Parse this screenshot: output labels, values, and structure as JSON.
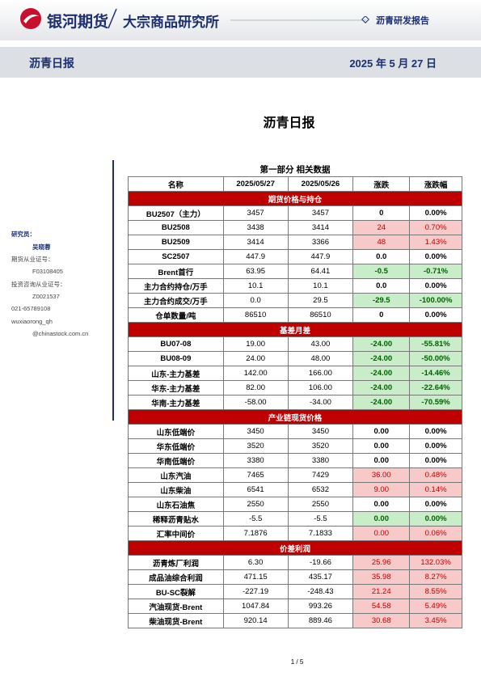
{
  "header": {
    "logo_text": "银河期货",
    "institute": "大宗商品研究所",
    "report_type": "沥青研发报告"
  },
  "banner": {
    "title": "沥青日报",
    "date": "2025 年 5 月 27 日"
  },
  "doc_title": "沥青日报",
  "sidebar": {
    "lines": [
      "研究员：",
      "吴晓蓉",
      "期货从业证号：",
      "F03108405",
      "投资咨询从业证号：",
      "Z0021537",
      "021-65789108",
      "wuxiaorong_qh",
      "@chinastock.com.cn"
    ]
  },
  "table": {
    "title": "第一部分 相关数据",
    "header": [
      "名称",
      "2025/05/27",
      "2025/05/26",
      "涨跌",
      "涨跌幅"
    ],
    "colors": {
      "section": "#c00000",
      "up": "#f8c9c9",
      "down": "#c9ecc9"
    },
    "sections": [
      {
        "title": "期货价格与持仓",
        "rows": [
          {
            "cells": [
              "BU2507（主力）",
              "3457",
              "3457",
              "0",
              "0.00%"
            ]
          },
          {
            "cells": [
              "BU2508",
              "3438",
              "3414",
              "24",
              "0.70%"
            ],
            "fill": "up"
          },
          {
            "cells": [
              "BU2509",
              "3414",
              "3366",
              "48",
              "1.43%"
            ],
            "fill": "up"
          },
          {
            "cells": [
              "SC2507",
              "447.9",
              "447.9",
              "0.0",
              "0.00%"
            ]
          },
          {
            "cells": [
              "Brent首行",
              "63.95",
              "64.41",
              "-0.5",
              "-0.71%"
            ],
            "fill": "down"
          },
          {
            "cells": [
              "主力合约持仓/万手",
              "10.1",
              "10.1",
              "0.0",
              "0.00%"
            ]
          },
          {
            "cells": [
              "主力合约成交/万手",
              "0.0",
              "29.5",
              "-29.5",
              "-100.00%"
            ],
            "fill": "down"
          },
          {
            "cells": [
              "仓单数量/吨",
              "86510",
              "86510",
              "0",
              "0.00%"
            ]
          }
        ]
      },
      {
        "title": "基差月差",
        "rows": [
          {
            "cells": [
              "BU07-08",
              "19.00",
              "43.00",
              "-24.00",
              "-55.81%"
            ],
            "fill": "down"
          },
          {
            "cells": [
              "BU08-09",
              "24.00",
              "48.00",
              "-24.00",
              "-50.00%"
            ],
            "fill": "down"
          },
          {
            "cells": [
              "山东-主力基差",
              "142.00",
              "166.00",
              "-24.00",
              "-14.46%"
            ],
            "fill": "down"
          },
          {
            "cells": [
              "华东-主力基差",
              "82.00",
              "106.00",
              "-24.00",
              "-22.64%"
            ],
            "fill": "down"
          },
          {
            "cells": [
              "华南-主力基差",
              "-58.00",
              "-34.00",
              "-24.00",
              "-70.59%"
            ],
            "fill": "down"
          }
        ]
      },
      {
        "title": "产业链现货价格",
        "rows": [
          {
            "cells": [
              "山东低端价",
              "3450",
              "3450",
              "0.00",
              "0.00%"
            ]
          },
          {
            "cells": [
              "华东低端价",
              "3520",
              "3520",
              "0.00",
              "0.00%"
            ]
          },
          {
            "cells": [
              "华南低端价",
              "3380",
              "3380",
              "0.00",
              "0.00%"
            ]
          },
          {
            "cells": [
              "山东汽油",
              "7465",
              "7429",
              "36.00",
              "0.48%"
            ],
            "fill": "up"
          },
          {
            "cells": [
              "山东柴油",
              "6541",
              "6532",
              "9.00",
              "0.14%"
            ],
            "fill": "up"
          },
          {
            "cells": [
              "山东石油焦",
              "2550",
              "2550",
              "0.00",
              "0.00%"
            ]
          },
          {
            "cells": [
              "稀释沥青贴水",
              "-5.5",
              "-5.5",
              "0.00",
              "0.00%"
            ],
            "fill": "down"
          },
          {
            "cells": [
              "汇率中间价",
              "7.1876",
              "7.1833",
              "0.00",
              "0.06%"
            ],
            "fill": "up"
          }
        ]
      },
      {
        "title": "价差利润",
        "rows": [
          {
            "cells": [
              "沥青炼厂利润",
              "6.30",
              "-19.66",
              "25.96",
              "132.03%"
            ],
            "fill": "up"
          },
          {
            "cells": [
              "成品油综合利润",
              "471.15",
              "435.17",
              "35.98",
              "8.27%"
            ],
            "fill": "up"
          },
          {
            "cells": [
              "BU-SC裂解",
              "-227.19",
              "-248.43",
              "21.24",
              "8.55%"
            ],
            "fill": "up"
          },
          {
            "cells": [
              "汽油现货-Brent",
              "1047.84",
              "993.26",
              "54.58",
              "5.49%"
            ],
            "fill": "up"
          },
          {
            "cells": [
              "柴油现货-Brent",
              "920.14",
              "889.46",
              "30.68",
              "3.45%"
            ],
            "fill": "up"
          }
        ]
      }
    ]
  },
  "footer": {
    "page": "1 / 5"
  }
}
